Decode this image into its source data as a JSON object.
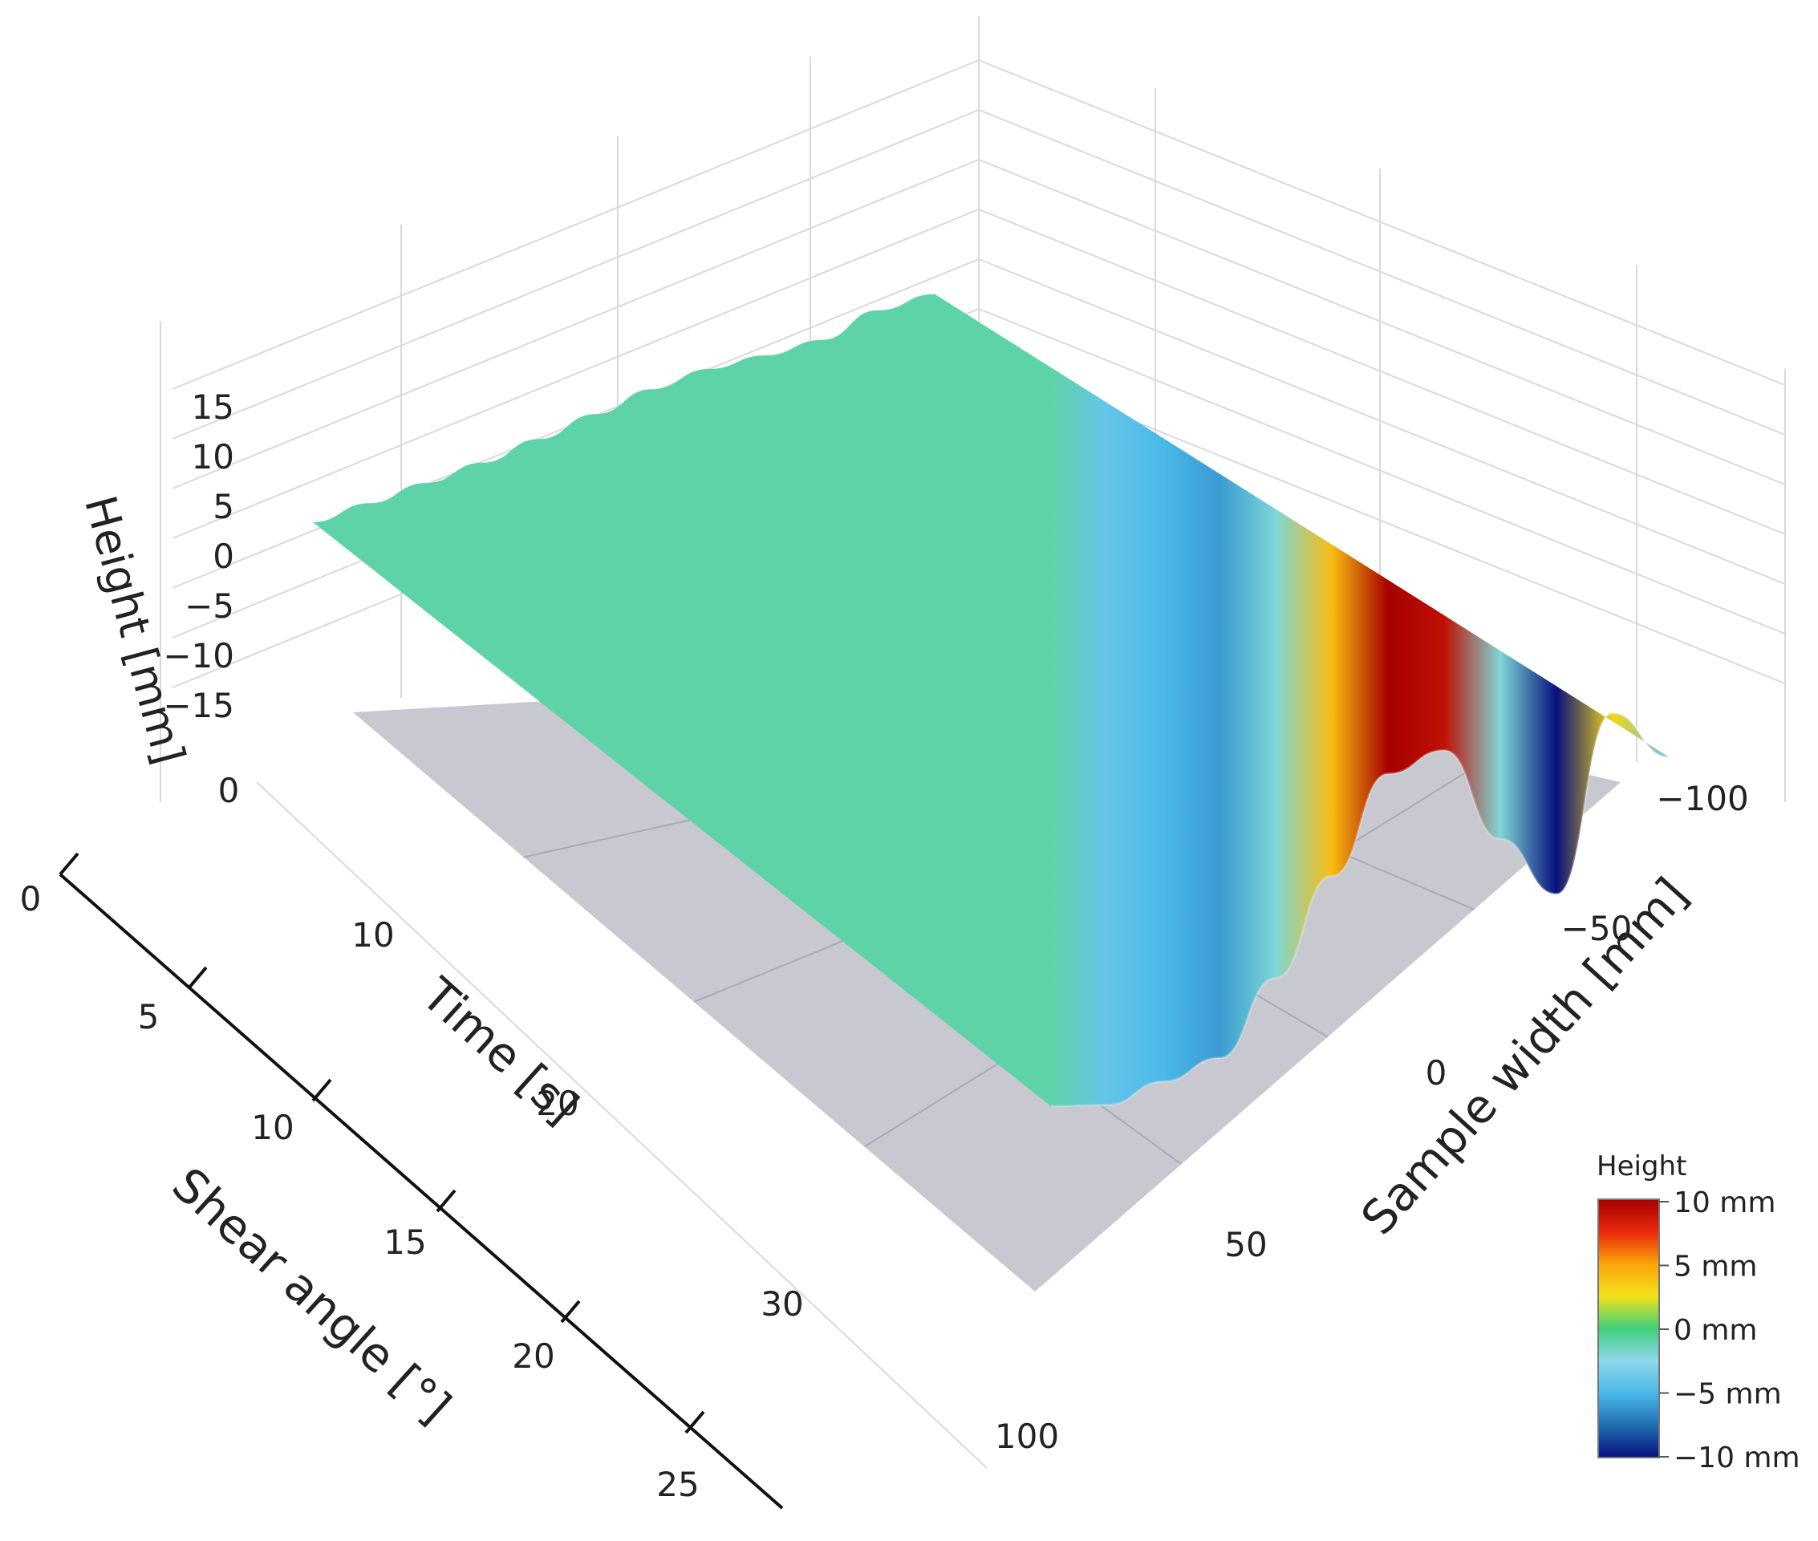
{
  "chart_data": {
    "type": "surface",
    "axes": {
      "z": {
        "label": "Height [mm]",
        "ticks": [
          15,
          10,
          5,
          0,
          -5,
          -10,
          -15
        ],
        "range": [
          -15,
          15
        ]
      },
      "time": {
        "label": "Time [s]",
        "ticks": [
          0,
          10,
          20,
          30,
          100
        ],
        "range": [
          0,
          35
        ]
      },
      "shear": {
        "label": "Shear angle [°]",
        "ticks": [
          0,
          5,
          10,
          15,
          20,
          25
        ],
        "range": [
          0,
          25
        ]
      },
      "width": {
        "label": "Sample width [mm]",
        "ticks": [
          -100,
          -50,
          0,
          50
        ],
        "range": [
          -100,
          70
        ]
      }
    },
    "tick_text": {
      "z": [
        "15",
        "10",
        "5",
        "0",
        "−5",
        "−10",
        "−15"
      ],
      "time": [
        "0",
        "10",
        "20",
        "30",
        "100"
      ],
      "shear": [
        "0",
        "5",
        "10",
        "15",
        "20",
        "25"
      ],
      "width": [
        "−100",
        "−50",
        "0",
        "50"
      ]
    },
    "surface_profile": {
      "sample_width_mm": [
        -100,
        -85,
        -70,
        -55,
        -40,
        -25,
        -10,
        5,
        20,
        35,
        50,
        65
      ],
      "height_mm": [
        -4,
        3,
        -10,
        -2,
        9,
        10,
        4,
        -2,
        -6,
        -5,
        -4,
        -1
      ]
    },
    "colorbar": {
      "title": "Height",
      "tick_labels": [
        "10 mm",
        "5 mm",
        "0 mm",
        "−5 mm",
        "−10 mm"
      ],
      "range": [
        -10,
        10
      ],
      "colorscale": [
        "#08117e",
        "#1f6fb2",
        "#4ab8e8",
        "#8ed8ec",
        "#3fcf7a",
        "#f2e21a",
        "#fca30b",
        "#e8290c",
        "#a60000"
      ]
    },
    "grid": true,
    "legend_position": "bottom-right"
  }
}
